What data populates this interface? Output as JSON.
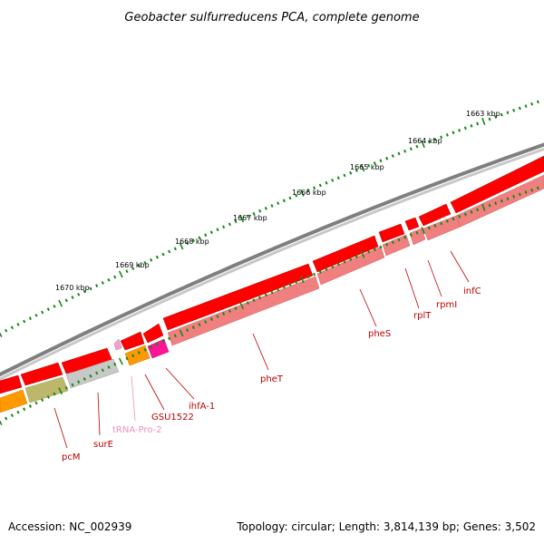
{
  "title": "Geobacter sulfurreducens PCA, complete genome",
  "footer": {
    "accession": "Accession: NC_002939",
    "topology": "Topology: circular; Length: 3,814,139 bp; Genes: 3,502"
  },
  "colors": {
    "backbone": "#7f7f7f",
    "cds": "#ff0000",
    "gene": "#f08080",
    "tick": "#138a13",
    "label_gene": "#c00000",
    "label_trna": "#f090c0"
  },
  "ticks": [
    {
      "kbp": 1663,
      "label": "1663 kbp"
    },
    {
      "kbp": 1664,
      "label": "1664 kbp"
    },
    {
      "kbp": 1665,
      "label": "1665 kbp"
    },
    {
      "kbp": 1666,
      "label": "1666 kbp"
    },
    {
      "kbp": 1667,
      "label": "1667 kbp"
    },
    {
      "kbp": 1668,
      "label": "1668 kbp"
    },
    {
      "kbp": 1669,
      "label": "1669 kbp"
    },
    {
      "kbp": 1670,
      "label": "1670 kbp"
    }
  ],
  "features": [
    {
      "name": "infC",
      "type": "CDS"
    },
    {
      "name": "rpmI",
      "type": "CDS"
    },
    {
      "name": "rplT",
      "type": "CDS"
    },
    {
      "name": "pheS",
      "type": "CDS"
    },
    {
      "name": "pheT",
      "type": "CDS"
    },
    {
      "name": "ihfA-1",
      "type": "CDS"
    },
    {
      "name": "GSU1522",
      "type": "CDS"
    },
    {
      "name": "tRNA-Pro-2",
      "type": "tRNA"
    },
    {
      "name": "surE",
      "type": "CDS"
    },
    {
      "name": "pcM",
      "type": "CDS"
    }
  ]
}
